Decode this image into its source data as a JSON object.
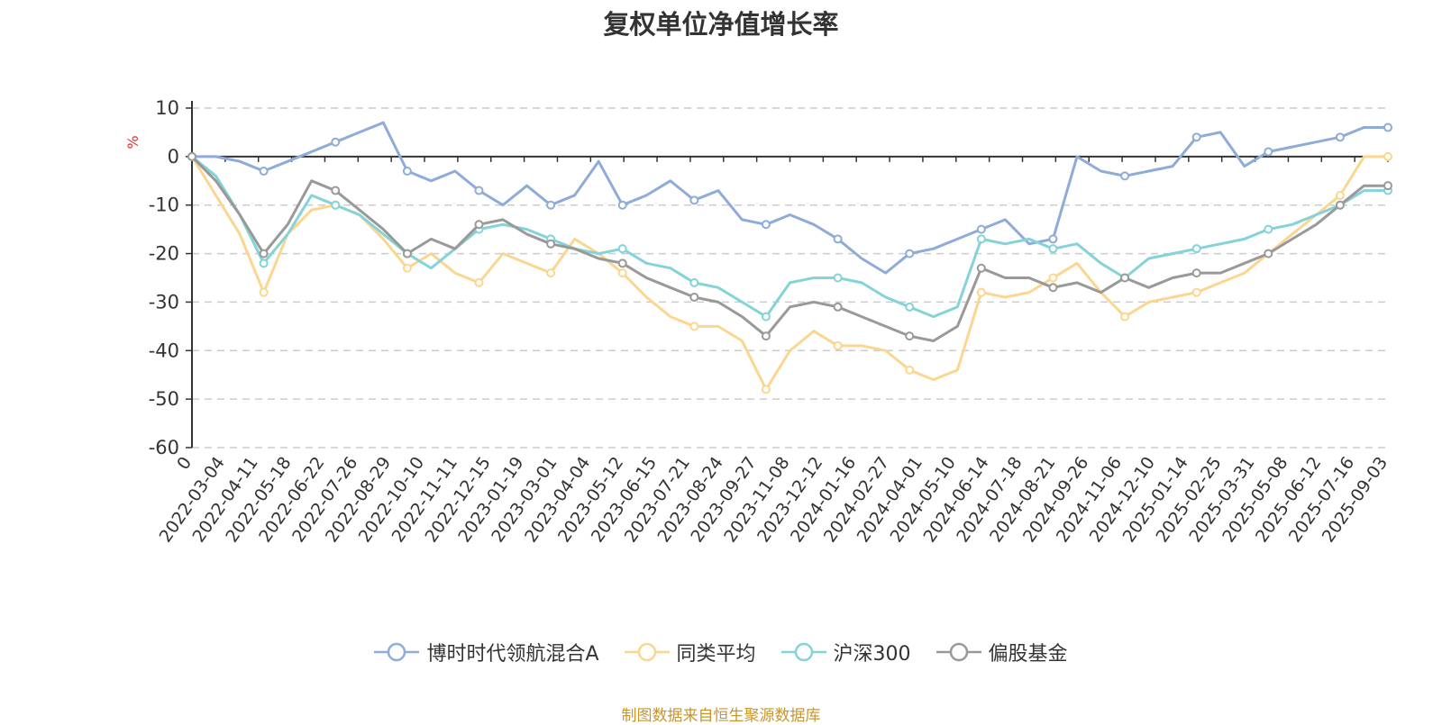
{
  "title": "复权单位净值增长率",
  "source_note": "制图数据来自恒生聚源数据库",
  "colors": {
    "博时时代领航混合A": "#8fabd9",
    "同类平均": "#fcd690",
    "沪深300": "#84d3d9",
    "偏股基金": "#999999"
  },
  "chart_data": {
    "type": "line",
    "title": "复权单位净值增长率",
    "ylabel": "%",
    "xlabel": "",
    "ylim": [
      -60,
      10
    ],
    "yticks": [
      10,
      0,
      -10,
      -20,
      -30,
      -40,
      -50,
      -60
    ],
    "xticks": [
      "0",
      "2022-03-04",
      "2022-04-11",
      "2022-05-18",
      "2022-06-22",
      "2022-07-26",
      "2022-08-29",
      "2022-10-10",
      "2022-11-11",
      "2022-12-15",
      "2023-01-19",
      "2023-03-01",
      "2023-04-04",
      "2023-05-12",
      "2023-06-15",
      "2023-07-21",
      "2023-08-24",
      "2023-09-27",
      "2023-11-08",
      "2023-12-12",
      "2024-01-16",
      "2024-02-27",
      "2024-04-01",
      "2024-05-10",
      "2024-06-14",
      "2024-07-18",
      "2024-08-21",
      "2024-09-26",
      "2024-11-06",
      "2024-12-10",
      "2025-01-14",
      "2025-02-25",
      "2025-03-31",
      "2025-05-08",
      "2025-06-12",
      "2025-07-16",
      "2025-09-03"
    ],
    "grid": true,
    "legend_position": "bottom",
    "x": [
      0,
      0.02,
      0.04,
      0.06,
      0.08,
      0.1,
      0.12,
      0.14,
      0.16,
      0.18,
      0.2,
      0.22,
      0.24,
      0.26,
      0.28,
      0.3,
      0.32,
      0.34,
      0.36,
      0.38,
      0.4,
      0.42,
      0.44,
      0.46,
      0.48,
      0.5,
      0.52,
      0.54,
      0.56,
      0.58,
      0.6,
      0.62,
      0.64,
      0.66,
      0.68,
      0.7,
      0.72,
      0.74,
      0.76,
      0.78,
      0.8,
      0.82,
      0.84,
      0.86,
      0.88,
      0.9,
      0.92,
      0.94,
      0.96,
      0.98,
      1.0
    ],
    "series": [
      {
        "name": "博时时代领航混合A",
        "values": [
          0,
          0,
          -1,
          -3,
          -1,
          1,
          3,
          5,
          7,
          -3,
          -5,
          -3,
          -7,
          -10,
          -6,
          -10,
          -8,
          -1,
          -10,
          -8,
          -5,
          -9,
          -7,
          -13,
          -14,
          -12,
          -14,
          -17,
          -21,
          -24,
          -20,
          -19,
          -17,
          -15,
          -13,
          -18,
          -17,
          0,
          -3,
          -4,
          -3,
          -2,
          4,
          5,
          -2,
          1,
          2,
          3,
          4,
          6,
          6
        ]
      },
      {
        "name": "同类平均",
        "values": [
          0,
          -8,
          -16,
          -28,
          -16,
          -11,
          -10,
          -12,
          -17,
          -23,
          -20,
          -24,
          -26,
          -20,
          -22,
          -24,
          -17,
          -20,
          -24,
          -29,
          -33,
          -35,
          -35,
          -38,
          -48,
          -40,
          -36,
          -39,
          -39,
          -40,
          -44,
          -46,
          -44,
          -28,
          -29,
          -28,
          -25,
          -22,
          -28,
          -33,
          -30,
          -29,
          -28,
          -26,
          -24,
          -20,
          -16,
          -12,
          -8,
          0,
          0
        ]
      },
      {
        "name": "沪深300",
        "values": [
          0,
          -4,
          -12,
          -22,
          -16,
          -8,
          -10,
          -12,
          -16,
          -20,
          -23,
          -19,
          -15,
          -14,
          -15,
          -17,
          -19,
          -20,
          -19,
          -22,
          -23,
          -26,
          -27,
          -30,
          -33,
          -26,
          -25,
          -25,
          -26,
          -29,
          -31,
          -33,
          -31,
          -17,
          -18,
          -17,
          -19,
          -18,
          -22,
          -25,
          -21,
          -20,
          -19,
          -18,
          -17,
          -15,
          -14,
          -12,
          -10,
          -7,
          -7
        ]
      },
      {
        "name": "偏股基金",
        "values": [
          0,
          -5,
          -12,
          -20,
          -14,
          -5,
          -7,
          -11,
          -15,
          -20,
          -17,
          -19,
          -14,
          -13,
          -16,
          -18,
          -19,
          -21,
          -22,
          -25,
          -27,
          -29,
          -30,
          -33,
          -37,
          -31,
          -30,
          -31,
          -33,
          -35,
          -37,
          -38,
          -35,
          -23,
          -25,
          -25,
          -27,
          -26,
          -28,
          -25,
          -27,
          -25,
          -24,
          -24,
          -22,
          -20,
          -17,
          -14,
          -10,
          -6,
          -6
        ]
      }
    ]
  }
}
